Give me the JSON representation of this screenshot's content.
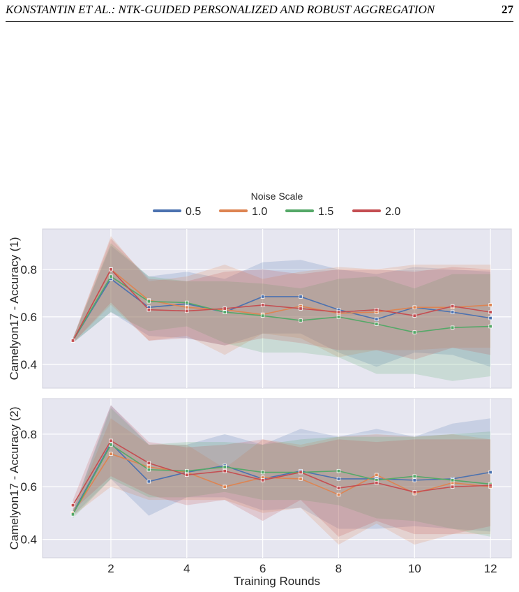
{
  "header": {
    "running_title": "KONSTANTIN ET AL.: NTK-GUIDED PERSONALIZED AND ROBUST AGGREGATION",
    "page_number": "27"
  },
  "colors": {
    "background": "#ffffff",
    "plot_background": "#e6e6f0",
    "grid": "#ffffff",
    "series": [
      "#4c72b0",
      "#dd8452",
      "#55a868",
      "#c44e52"
    ]
  },
  "chart_data": {
    "type": "line",
    "legend": {
      "title": "Noise Scale",
      "position": "top-center",
      "entries": [
        "0.5",
        "1.0",
        "1.5",
        "2.0"
      ]
    },
    "xlabel": "Training Rounds",
    "x": [
      1,
      2,
      3,
      4,
      5,
      6,
      7,
      8,
      9,
      10,
      11,
      12
    ],
    "xlim": [
      0.2,
      12.55
    ],
    "xticks": [
      2,
      4,
      6,
      8,
      10,
      12
    ],
    "grid": true,
    "panels": [
      {
        "ylabel": "Camelyon17 - Accuracy (1)",
        "ylim": [
          0.3,
          0.97
        ],
        "yticks": [
          0.4,
          0.6,
          0.8
        ],
        "series": [
          {
            "name": "0.5",
            "values": [
              0.5,
              0.76,
              0.64,
              0.655,
              0.62,
              0.685,
              0.685,
              0.63,
              0.59,
              0.64,
              0.62,
              0.595
            ],
            "lower": [
              0.49,
              0.62,
              0.52,
              0.51,
              0.48,
              0.53,
              0.53,
              0.45,
              0.39,
              0.45,
              0.44,
              0.39
            ],
            "upper": [
              0.51,
              0.9,
              0.77,
              0.79,
              0.76,
              0.83,
              0.84,
              0.8,
              0.78,
              0.81,
              0.8,
              0.79
            ]
          },
          {
            "name": "1.0",
            "values": [
              0.5,
              0.8,
              0.67,
              0.64,
              0.63,
              0.61,
              0.645,
              0.615,
              0.62,
              0.64,
              0.64,
              0.65
            ],
            "lower": [
              0.49,
              0.65,
              0.5,
              0.52,
              0.44,
              0.53,
              0.51,
              0.43,
              0.46,
              0.46,
              0.47,
              0.47
            ],
            "upper": [
              0.51,
              0.94,
              0.75,
              0.77,
              0.82,
              0.76,
              0.79,
              0.81,
              0.8,
              0.82,
              0.82,
              0.82
            ]
          },
          {
            "name": "1.5",
            "values": [
              0.5,
              0.77,
              0.665,
              0.66,
              0.62,
              0.605,
              0.585,
              0.6,
              0.57,
              0.535,
              0.555,
              0.56
            ],
            "lower": [
              0.49,
              0.62,
              0.54,
              0.56,
              0.49,
              0.45,
              0.45,
              0.43,
              0.36,
              0.36,
              0.33,
              0.35
            ],
            "upper": [
              0.51,
              0.91,
              0.77,
              0.75,
              0.75,
              0.74,
              0.72,
              0.76,
              0.77,
              0.72,
              0.78,
              0.78
            ]
          },
          {
            "name": "2.0",
            "values": [
              0.5,
              0.8,
              0.63,
              0.625,
              0.635,
              0.65,
              0.635,
              0.62,
              0.63,
              0.605,
              0.645,
              0.62
            ],
            "lower": [
              0.49,
              0.66,
              0.5,
              0.51,
              0.48,
              0.51,
              0.49,
              0.46,
              0.46,
              0.42,
              0.47,
              0.44
            ],
            "upper": [
              0.51,
              0.93,
              0.76,
              0.75,
              0.79,
              0.8,
              0.78,
              0.8,
              0.8,
              0.79,
              0.81,
              0.8
            ]
          }
        ]
      },
      {
        "ylabel": "Camelyon17 - Accuracy (2)",
        "ylim": [
          0.33,
          0.935
        ],
        "yticks": [
          0.4,
          0.6,
          0.8
        ],
        "series": [
          {
            "name": "0.5",
            "values": [
              0.5,
              0.765,
              0.62,
              0.655,
              0.68,
              0.63,
              0.66,
              0.63,
              0.63,
              0.625,
              0.63,
              0.655
            ],
            "lower": [
              0.49,
              0.63,
              0.49,
              0.56,
              0.56,
              0.51,
              0.52,
              0.44,
              0.44,
              0.45,
              0.44,
              0.43
            ],
            "upper": [
              0.51,
              0.91,
              0.76,
              0.76,
              0.8,
              0.76,
              0.82,
              0.79,
              0.82,
              0.79,
              0.84,
              0.86
            ]
          },
          {
            "name": "1.0",
            "values": [
              0.5,
              0.725,
              0.675,
              0.655,
              0.6,
              0.635,
              0.63,
              0.57,
              0.645,
              0.575,
              0.615,
              0.6
            ],
            "lower": [
              0.49,
              0.6,
              0.55,
              0.55,
              0.55,
              0.5,
              0.52,
              0.38,
              0.46,
              0.38,
              0.42,
              0.42
            ],
            "upper": [
              0.51,
              0.86,
              0.76,
              0.76,
              0.67,
              0.78,
              0.76,
              0.79,
              0.8,
              0.79,
              0.8,
              0.78
            ]
          },
          {
            "name": "1.5",
            "values": [
              0.495,
              0.76,
              0.665,
              0.66,
              0.675,
              0.655,
              0.655,
              0.66,
              0.625,
              0.64,
              0.625,
              0.61
            ],
            "lower": [
              0.48,
              0.63,
              0.56,
              0.56,
              0.58,
              0.55,
              0.55,
              0.53,
              0.48,
              0.47,
              0.44,
              0.41
            ],
            "upper": [
              0.51,
              0.9,
              0.76,
              0.77,
              0.77,
              0.76,
              0.78,
              0.79,
              0.79,
              0.79,
              0.8,
              0.81
            ]
          },
          {
            "name": "2.0",
            "values": [
              0.53,
              0.775,
              0.69,
              0.645,
              0.66,
              0.625,
              0.655,
              0.595,
              0.615,
              0.58,
              0.6,
              0.605
            ],
            "lower": [
              0.51,
              0.64,
              0.57,
              0.53,
              0.55,
              0.47,
              0.55,
              0.41,
              0.47,
              0.42,
              0.42,
              0.45
            ],
            "upper": [
              0.55,
              0.91,
              0.77,
              0.75,
              0.76,
              0.78,
              0.75,
              0.78,
              0.77,
              0.78,
              0.78,
              0.78
            ]
          }
        ]
      }
    ]
  }
}
